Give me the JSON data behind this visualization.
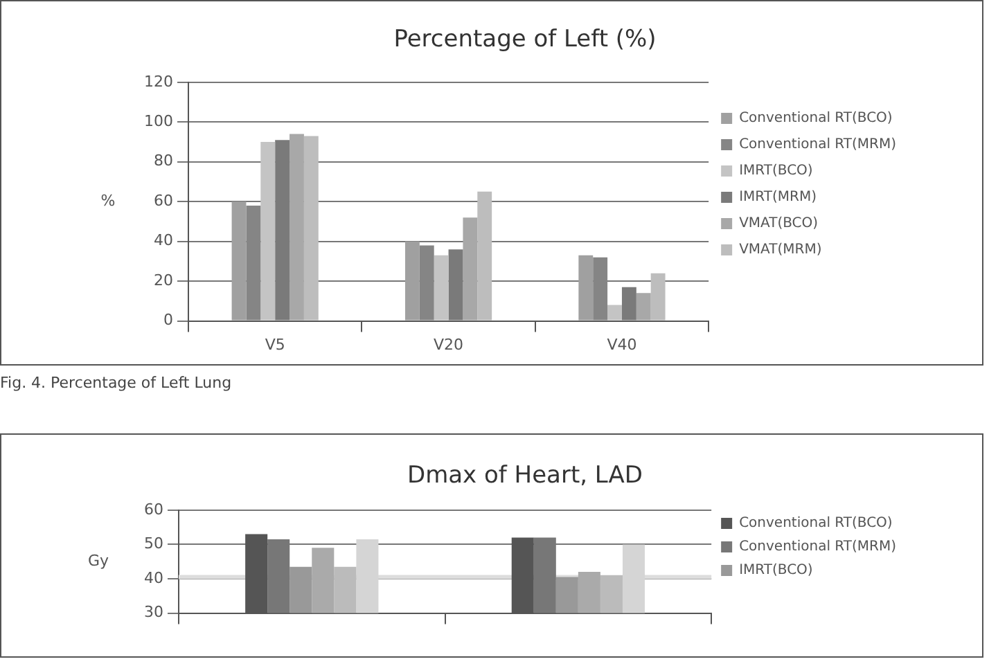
{
  "chart_data": [
    {
      "type": "bar",
      "title": "Percentage of Left (%)",
      "ylabel": "%",
      "categories": [
        "V5",
        "V20",
        "V40"
      ],
      "series": [
        {
          "name": "Conventional RT(BCO)",
          "color": "#a0a0a0",
          "values": [
            60,
            40,
            33
          ]
        },
        {
          "name": "Conventional RT(MRM)",
          "color": "#858585",
          "values": [
            58,
            38,
            32
          ]
        },
        {
          "name": "IMRT(BCO)",
          "color": "#c4c4c4",
          "values": [
            90,
            33,
            8
          ]
        },
        {
          "name": "IMRT(MRM)",
          "color": "#7a7a7a",
          "values": [
            91,
            36,
            17
          ]
        },
        {
          "name": "VMAT(BCO)",
          "color": "#a8a8a8",
          "values": [
            94,
            52,
            14
          ]
        },
        {
          "name": "VMAT(MRM)",
          "color": "#bdbdbd",
          "values": [
            93,
            65,
            24
          ]
        }
      ],
      "ylim": [
        0,
        120
      ],
      "yticks": [
        0,
        20,
        40,
        60,
        80,
        100,
        120
      ],
      "grid": "y",
      "legend": "right",
      "annotations": [
        "Fig. 4. Percentage of Left Lung"
      ]
    },
    {
      "type": "bar",
      "title": "Dmax of Heart, LAD",
      "ylabel": "Gy",
      "categories": [
        null,
        null
      ],
      "series": [
        {
          "name": "Conventional RT(BCO)",
          "color": "#555555",
          "values": [
            53,
            52
          ]
        },
        {
          "name": "Conventional RT(MRM)",
          "color": "#777777",
          "values": [
            51.5,
            52
          ]
        },
        {
          "name": "IMRT(BCO)",
          "color": "#999999",
          "values": [
            43.5,
            40.5
          ]
        },
        {
          "color": "#aaaaaa",
          "values": [
            49,
            42
          ]
        },
        {
          "color": "#bbbbbb",
          "values": [
            43.5,
            41
          ]
        },
        {
          "color": "#d5d5d5",
          "values": [
            51.5,
            50
          ]
        }
      ],
      "ylim": [
        30,
        60
      ],
      "yticks": [
        30,
        40,
        50,
        60
      ],
      "grid": "y",
      "legend": "right",
      "ref_lines": [
        {
          "axis": "y",
          "value": 40.5,
          "color": "#dddddd"
        }
      ]
    }
  ]
}
